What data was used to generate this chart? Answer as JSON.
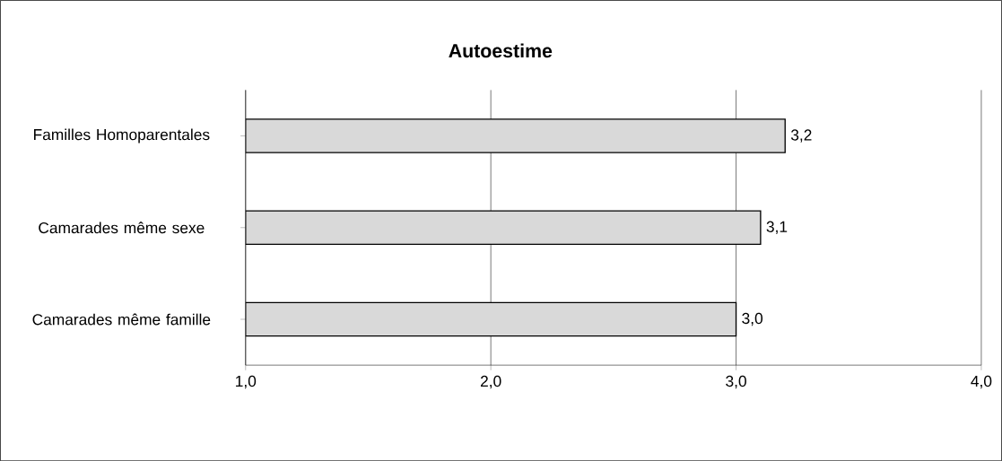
{
  "chart_data": {
    "type": "bar",
    "orientation": "horizontal",
    "title": "Autoestime",
    "categories": [
      "Familles Homoparentales",
      "Camarades même sexe",
      "Camarades même famille"
    ],
    "values": [
      3.2,
      3.1,
      3.0
    ],
    "value_labels": [
      "3,2",
      "3,1",
      "3,0"
    ],
    "color": "#d9d9d9",
    "xlim": [
      1,
      4
    ],
    "xticks": [
      {
        "value": 1,
        "label": "1,0"
      },
      {
        "value": 2,
        "label": "2,0"
      },
      {
        "value": 3,
        "label": "3,0"
      },
      {
        "value": 4,
        "label": "4,0"
      }
    ],
    "grid": "x"
  }
}
